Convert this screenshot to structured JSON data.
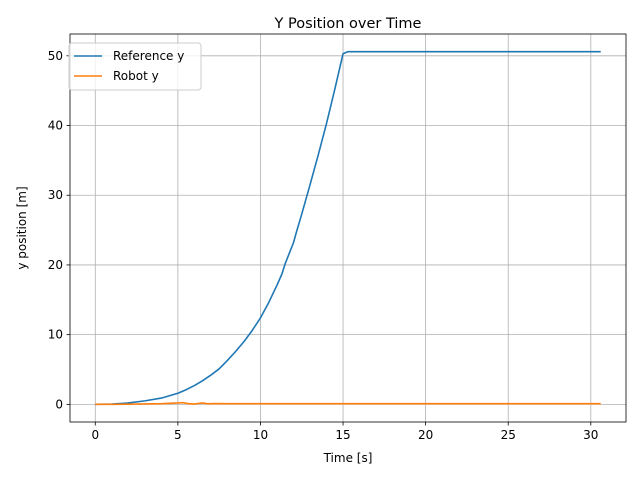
{
  "chart_data": {
    "type": "line",
    "title": "Y Position over Time",
    "xlabel": "Time [s]",
    "ylabel": "y position [m]",
    "xlim": [
      -1.53,
      32.13
    ],
    "ylim": [
      -2.53,
      53.13
    ],
    "xticks": [
      0,
      5,
      10,
      15,
      20,
      25,
      30
    ],
    "yticks": [
      0,
      10,
      20,
      30,
      40,
      50
    ],
    "grid": true,
    "legend_position": "top-left",
    "series": [
      {
        "name": "Reference y",
        "color": "#1f77b4",
        "x": [
          0,
          1,
          2,
          3,
          4,
          5,
          5.5,
          6,
          6.5,
          7,
          7.5,
          8,
          8.5,
          9,
          9.5,
          10,
          10.5,
          11,
          11.3,
          11.5,
          12,
          12.2,
          12.5,
          13,
          13.5,
          14,
          14.5,
          15,
          15.3,
          15.8,
          20,
          25,
          30.6
        ],
        "y": [
          0,
          0.05,
          0.2,
          0.5,
          0.9,
          1.6,
          2.1,
          2.7,
          3.4,
          4.2,
          5.1,
          6.3,
          7.6,
          9.0,
          10.6,
          12.4,
          14.6,
          17.1,
          18.7,
          20.2,
          23.2,
          24.9,
          27.3,
          31.5,
          35.8,
          40.3,
          45.2,
          50.3,
          50.6,
          50.6,
          50.6,
          50.6,
          50.6
        ]
      },
      {
        "name": "Robot y",
        "color": "#ff7f0e",
        "x": [
          0,
          1,
          2,
          3,
          4,
          4.5,
          5,
          5.3,
          5.6,
          6,
          6.5,
          6.8,
          7.2,
          8,
          10,
          15,
          20,
          25,
          30.6
        ],
        "y": [
          0,
          0.01,
          0.03,
          0.06,
          0.1,
          0.15,
          0.2,
          0.25,
          0.12,
          0.05,
          0.2,
          0.08,
          0.12,
          0.1,
          0.1,
          0.1,
          0.1,
          0.1,
          0.1
        ]
      }
    ]
  }
}
